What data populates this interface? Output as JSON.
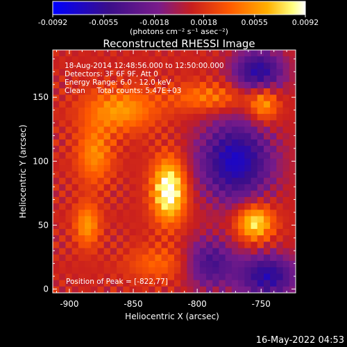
{
  "colorbar": {
    "ticks": [
      "-0.0092",
      "-0.0055",
      "-0.0018",
      "0.0018",
      "0.0055",
      "0.0092"
    ],
    "tick_values": [
      -0.0092,
      -0.0055,
      -0.0018,
      0.0018,
      0.0055,
      0.0092
    ],
    "range": [
      -0.0092,
      0.0092
    ],
    "units_label": "(photons cm⁻² s⁻¹ asec⁻²)",
    "colors": [
      "#0000ff",
      "#4b0082",
      "#7a1c8a",
      "#c81e1e",
      "#ff5a00",
      "#ffb000",
      "#ffff80",
      "#ffffff"
    ]
  },
  "chart_data": {
    "type": "heatmap",
    "title": "Reconstructed RHESSI Image",
    "xlabel": "Heliocentric X (arcsec)",
    "ylabel": "Heliocentric Y (arcsec)",
    "xlim": [
      -913,
      -723
    ],
    "ylim": [
      -3,
      187
    ],
    "x_ticks": [
      "-900",
      "-850",
      "-800",
      "-750"
    ],
    "x_tick_values": [
      -900,
      -850,
      -800,
      -750
    ],
    "y_ticks": [
      "0",
      "50",
      "100",
      "150"
    ],
    "y_tick_values": [
      0,
      50,
      100,
      150
    ],
    "annotations": [
      "18-Aug-2014 12:48:56.000 to 12:50:00.000",
      "Detectors: 3F 6F 9F, Att 0",
      "Energy Range: 6.0 - 12.0 keV",
      "Clean     Total counts: 5.47E+03"
    ],
    "peak_label": "Position of Peak = [-822,77]",
    "peak": [
      -822,
      77
    ],
    "sources": [
      {
        "x": -822,
        "y": 77,
        "sx": 9,
        "sy": 17,
        "amp": 1.0
      },
      {
        "x": -755,
        "y": 52,
        "sx": 10,
        "sy": 10,
        "amp": 0.8
      },
      {
        "x": -748,
        "y": 145,
        "sx": 8,
        "sy": 10,
        "amp": 0.55
      },
      {
        "x": -886,
        "y": 50,
        "sx": 7,
        "sy": 12,
        "amp": 0.5
      },
      {
        "x": -860,
        "y": 140,
        "sx": 20,
        "sy": 12,
        "amp": 0.5
      },
      {
        "x": -880,
        "y": 105,
        "sx": 10,
        "sy": 16,
        "amp": 0.45
      },
      {
        "x": -790,
        "y": 150,
        "sx": 22,
        "sy": 8,
        "amp": 0.4
      },
      {
        "x": -830,
        "y": 20,
        "sx": 18,
        "sy": 10,
        "amp": 0.3
      }
    ],
    "negative_regions": [
      {
        "x": -770,
        "y": 100,
        "sx": 20,
        "sy": 22,
        "amp": 0.9
      },
      {
        "x": -752,
        "y": 170,
        "sx": 14,
        "sy": 12,
        "amp": 0.8
      },
      {
        "x": -745,
        "y": 10,
        "sx": 16,
        "sy": 12,
        "amp": 0.8
      },
      {
        "x": -790,
        "y": 20,
        "sx": 14,
        "sy": 14,
        "amp": 0.6
      }
    ]
  },
  "footer": {
    "date": "16-May-2022 04:53"
  }
}
